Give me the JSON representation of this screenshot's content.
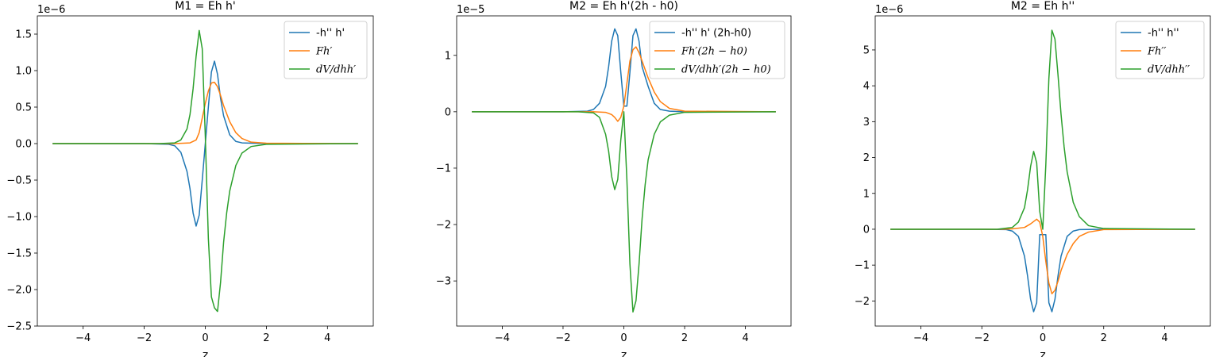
{
  "chart_data": [
    {
      "type": "line",
      "title": "M1 = Eh h'",
      "xlabel": "z",
      "ylabel": "",
      "y_offset_label": "1e−6",
      "xlim": [
        -5.5,
        5.5
      ],
      "ylim": [
        -2.5,
        1.75
      ],
      "xticks": [
        -4,
        -2,
        0,
        2,
        4
      ],
      "xtick_labels": [
        "−4",
        "−2",
        "0",
        "2",
        "4"
      ],
      "yticks": [
        -2.5,
        -2.0,
        -1.5,
        -1.0,
        -0.5,
        0.0,
        0.5,
        1.0,
        1.5
      ],
      "ytick_labels": [
        "−2.5",
        "−2.0",
        "−1.5",
        "−1.0",
        "−0.5",
        "0.0",
        "0.5",
        "1.0",
        "1.5"
      ],
      "legend_position": "upper-right",
      "series": [
        {
          "name": "-h'' h'",
          "color": "#1f77b4",
          "math": false,
          "points": [
            [
              -5,
              0
            ],
            [
              -2,
              0
            ],
            [
              -1.2,
              -0.01
            ],
            [
              -1,
              -0.03
            ],
            [
              -0.8,
              -0.12
            ],
            [
              -0.6,
              -0.38
            ],
            [
              -0.5,
              -0.62
            ],
            [
              -0.4,
              -0.95
            ],
            [
              -0.3,
              -1.13
            ],
            [
              -0.2,
              -0.98
            ],
            [
              -0.1,
              -0.5
            ],
            [
              0,
              0
            ],
            [
              0.1,
              0.5
            ],
            [
              0.2,
              0.98
            ],
            [
              0.3,
              1.13
            ],
            [
              0.4,
              0.95
            ],
            [
              0.5,
              0.62
            ],
            [
              0.6,
              0.38
            ],
            [
              0.8,
              0.12
            ],
            [
              1,
              0.03
            ],
            [
              1.2,
              0.01
            ],
            [
              2,
              0
            ],
            [
              5,
              0
            ]
          ]
        },
        {
          "name": "Fh′",
          "color": "#ff7f0e",
          "math": true,
          "points": [
            [
              -5,
              0
            ],
            [
              -1,
              0
            ],
            [
              -0.5,
              0.01
            ],
            [
              -0.3,
              0.05
            ],
            [
              -0.2,
              0.15
            ],
            [
              -0.1,
              0.35
            ],
            [
              0,
              0.55
            ],
            [
              0.1,
              0.72
            ],
            [
              0.2,
              0.83
            ],
            [
              0.3,
              0.84
            ],
            [
              0.4,
              0.78
            ],
            [
              0.5,
              0.66
            ],
            [
              0.6,
              0.52
            ],
            [
              0.8,
              0.3
            ],
            [
              1,
              0.15
            ],
            [
              1.2,
              0.07
            ],
            [
              1.5,
              0.02
            ],
            [
              2,
              0.005
            ],
            [
              5,
              0
            ]
          ]
        },
        {
          "name": "dV/dhh′",
          "color": "#2ca02c",
          "math": true,
          "points": [
            [
              -5,
              0
            ],
            [
              -1.5,
              0
            ],
            [
              -1,
              0.01
            ],
            [
              -0.8,
              0.05
            ],
            [
              -0.6,
              0.2
            ],
            [
              -0.5,
              0.4
            ],
            [
              -0.4,
              0.75
            ],
            [
              -0.3,
              1.2
            ],
            [
              -0.2,
              1.55
            ],
            [
              -0.1,
              1.3
            ],
            [
              0,
              0.1
            ],
            [
              0.1,
              -1.3
            ],
            [
              0.2,
              -2.1
            ],
            [
              0.3,
              -2.25
            ],
            [
              0.4,
              -2.3
            ],
            [
              0.5,
              -1.9
            ],
            [
              0.6,
              -1.35
            ],
            [
              0.7,
              -0.95
            ],
            [
              0.8,
              -0.65
            ],
            [
              1,
              -0.3
            ],
            [
              1.2,
              -0.13
            ],
            [
              1.5,
              -0.04
            ],
            [
              2,
              -0.01
            ],
            [
              5,
              0
            ]
          ]
        }
      ]
    },
    {
      "type": "line",
      "title": "M2 = Eh h'(2h - h0)",
      "xlabel": "z",
      "ylabel": "",
      "y_offset_label": "1e−5",
      "xlim": [
        -5.5,
        5.5
      ],
      "ylim": [
        -3.8,
        1.7
      ],
      "xticks": [
        -4,
        -2,
        0,
        2,
        4
      ],
      "xtick_labels": [
        "−4",
        "−2",
        "0",
        "2",
        "4"
      ],
      "yticks": [
        -3,
        -2,
        -1,
        0,
        1
      ],
      "ytick_labels": [
        "−3",
        "−2",
        "−1",
        "0",
        "1"
      ],
      "legend_position": "upper-right",
      "series": [
        {
          "name": "-h'' h' (2h-h0)",
          "color": "#1f77b4",
          "math": false,
          "points": [
            [
              -5,
              0
            ],
            [
              -2,
              0
            ],
            [
              -1.2,
              0.01
            ],
            [
              -1,
              0.04
            ],
            [
              -0.8,
              0.15
            ],
            [
              -0.6,
              0.45
            ],
            [
              -0.5,
              0.8
            ],
            [
              -0.4,
              1.25
            ],
            [
              -0.3,
              1.47
            ],
            [
              -0.2,
              1.35
            ],
            [
              -0.1,
              0.7
            ],
            [
              0,
              0.1
            ],
            [
              0.1,
              0.1
            ],
            [
              0.2,
              0.7
            ],
            [
              0.3,
              1.35
            ],
            [
              0.4,
              1.47
            ],
            [
              0.5,
              1.25
            ],
            [
              0.6,
              0.8
            ],
            [
              0.8,
              0.45
            ],
            [
              1,
              0.15
            ],
            [
              1.2,
              0.04
            ],
            [
              1.5,
              0.01
            ],
            [
              2,
              0
            ],
            [
              5,
              0
            ]
          ]
        },
        {
          "name": "Fh′(2h − h0)",
          "color": "#ff7f0e",
          "math": true,
          "points": [
            [
              -5,
              0
            ],
            [
              -1,
              0
            ],
            [
              -0.6,
              -0.01
            ],
            [
              -0.4,
              -0.05
            ],
            [
              -0.3,
              -0.1
            ],
            [
              -0.2,
              -0.17
            ],
            [
              -0.1,
              -0.1
            ],
            [
              0,
              0.1
            ],
            [
              0.1,
              0.5
            ],
            [
              0.2,
              0.9
            ],
            [
              0.3,
              1.1
            ],
            [
              0.4,
              1.15
            ],
            [
              0.5,
              1.05
            ],
            [
              0.6,
              0.9
            ],
            [
              0.8,
              0.6
            ],
            [
              1,
              0.35
            ],
            [
              1.2,
              0.18
            ],
            [
              1.5,
              0.06
            ],
            [
              2,
              0.01
            ],
            [
              5,
              0
            ]
          ]
        },
        {
          "name": "dV/dhh′(2h − h0)",
          "color": "#2ca02c",
          "math": true,
          "points": [
            [
              -5,
              0
            ],
            [
              -1.5,
              0
            ],
            [
              -1,
              -0.02
            ],
            [
              -0.8,
              -0.1
            ],
            [
              -0.6,
              -0.4
            ],
            [
              -0.5,
              -0.7
            ],
            [
              -0.4,
              -1.15
            ],
            [
              -0.3,
              -1.38
            ],
            [
              -0.2,
              -1.2
            ],
            [
              -0.1,
              -0.5
            ],
            [
              0,
              0
            ],
            [
              0.1,
              -1.2
            ],
            [
              0.2,
              -2.7
            ],
            [
              0.3,
              -3.55
            ],
            [
              0.4,
              -3.35
            ],
            [
              0.5,
              -2.7
            ],
            [
              0.6,
              -1.9
            ],
            [
              0.7,
              -1.3
            ],
            [
              0.8,
              -0.85
            ],
            [
              1,
              -0.4
            ],
            [
              1.2,
              -0.18
            ],
            [
              1.5,
              -0.06
            ],
            [
              2,
              -0.01
            ],
            [
              5,
              0
            ]
          ]
        }
      ]
    },
    {
      "type": "line",
      "title": "M2 = Eh h''",
      "xlabel": "z",
      "ylabel": "",
      "y_offset_label": "1e−6",
      "xlim": [
        -5.5,
        5.5
      ],
      "ylim": [
        -2.7,
        5.95
      ],
      "xticks": [
        -4,
        -2,
        0,
        2,
        4
      ],
      "xtick_labels": [
        "−4",
        "−2",
        "0",
        "2",
        "4"
      ],
      "yticks": [
        -2,
        -1,
        0,
        1,
        2,
        3,
        4,
        5
      ],
      "ytick_labels": [
        "−2",
        "−1",
        "0",
        "1",
        "2",
        "3",
        "4",
        "5"
      ],
      "legend_position": "upper-right",
      "series": [
        {
          "name": "-h'' h''",
          "color": "#1f77b4",
          "math": false,
          "points": [
            [
              -5,
              0
            ],
            [
              -2,
              0
            ],
            [
              -1.2,
              -0.01
            ],
            [
              -1,
              -0.05
            ],
            [
              -0.8,
              -0.2
            ],
            [
              -0.6,
              -0.75
            ],
            [
              -0.5,
              -1.3
            ],
            [
              -0.4,
              -1.95
            ],
            [
              -0.3,
              -2.3
            ],
            [
              -0.2,
              -2.05
            ],
            [
              -0.1,
              -0.15
            ],
            [
              0,
              -0.15
            ],
            [
              0.1,
              -0.15
            ],
            [
              0.2,
              -2.05
            ],
            [
              0.3,
              -2.3
            ],
            [
              0.4,
              -1.95
            ],
            [
              0.5,
              -1.3
            ],
            [
              0.6,
              -0.75
            ],
            [
              0.8,
              -0.2
            ],
            [
              1,
              -0.05
            ],
            [
              1.2,
              -0.01
            ],
            [
              2,
              0
            ],
            [
              5,
              0
            ]
          ]
        },
        {
          "name": "Fh′′",
          "color": "#ff7f0e",
          "math": true,
          "points": [
            [
              -5,
              0
            ],
            [
              -1.5,
              0
            ],
            [
              -1,
              0.01
            ],
            [
              -0.6,
              0.05
            ],
            [
              -0.4,
              0.15
            ],
            [
              -0.2,
              0.28
            ],
            [
              -0.1,
              0.2
            ],
            [
              0,
              -0.2
            ],
            [
              0.1,
              -0.9
            ],
            [
              0.2,
              -1.5
            ],
            [
              0.3,
              -1.8
            ],
            [
              0.4,
              -1.7
            ],
            [
              0.5,
              -1.45
            ],
            [
              0.6,
              -1.15
            ],
            [
              0.8,
              -0.7
            ],
            [
              1,
              -0.4
            ],
            [
              1.2,
              -0.2
            ],
            [
              1.5,
              -0.08
            ],
            [
              2,
              -0.01
            ],
            [
              5,
              0
            ]
          ]
        },
        {
          "name": "dV/dhh′′",
          "color": "#2ca02c",
          "math": true,
          "points": [
            [
              -5,
              0
            ],
            [
              -1.5,
              0
            ],
            [
              -1,
              0.05
            ],
            [
              -0.8,
              0.2
            ],
            [
              -0.6,
              0.6
            ],
            [
              -0.5,
              1.1
            ],
            [
              -0.4,
              1.75
            ],
            [
              -0.3,
              2.17
            ],
            [
              -0.2,
              1.85
            ],
            [
              -0.1,
              0.5
            ],
            [
              0,
              0
            ],
            [
              0.1,
              1.8
            ],
            [
              0.2,
              4.2
            ],
            [
              0.3,
              5.55
            ],
            [
              0.4,
              5.3
            ],
            [
              0.5,
              4.3
            ],
            [
              0.6,
              3.2
            ],
            [
              0.7,
              2.3
            ],
            [
              0.8,
              1.6
            ],
            [
              1,
              0.75
            ],
            [
              1.2,
              0.35
            ],
            [
              1.5,
              0.1
            ],
            [
              2,
              0.02
            ],
            [
              5,
              0
            ]
          ]
        }
      ]
    }
  ]
}
